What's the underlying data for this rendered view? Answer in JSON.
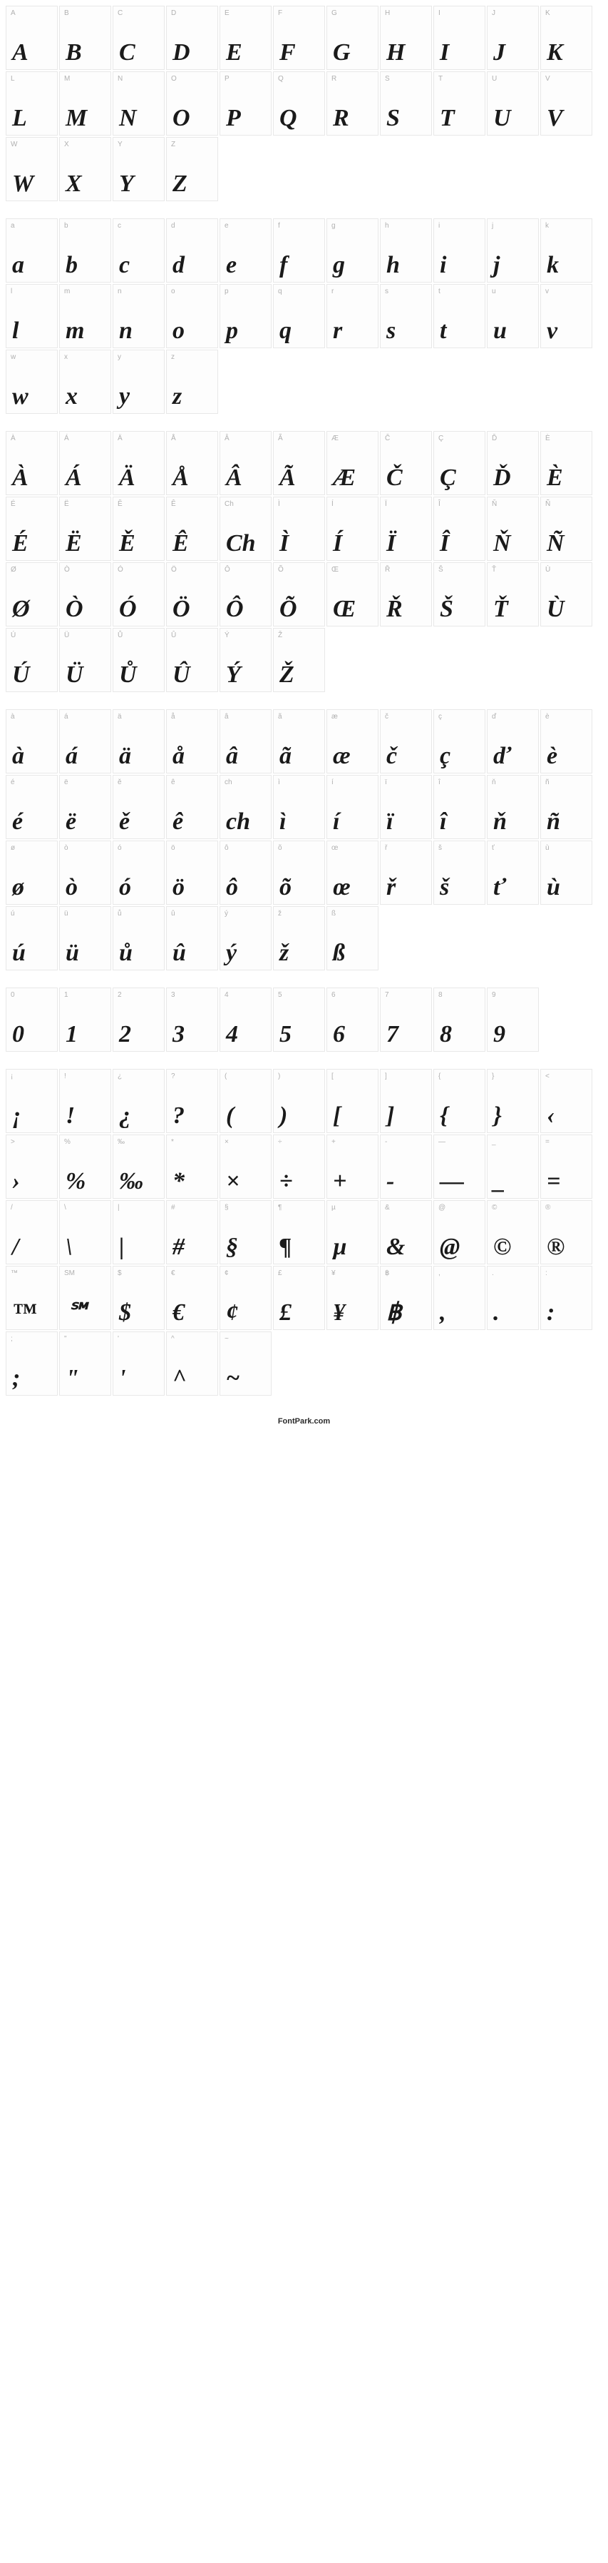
{
  "footer": "FontPark.com",
  "cell_style": {
    "width": 73,
    "height": 90,
    "border_color": "#e8e8e8",
    "background": "#fdfdfd",
    "label_color": "#b0b0b0",
    "label_fontsize": 10,
    "glyph_color": "#1a1a1a",
    "glyph_fontsize": 34,
    "glyph_style": "italic",
    "glyph_weight": 700
  },
  "groups": [
    {
      "name": "uppercase",
      "cells": [
        {
          "label": "A",
          "glyph": "A"
        },
        {
          "label": "B",
          "glyph": "B"
        },
        {
          "label": "C",
          "glyph": "C"
        },
        {
          "label": "D",
          "glyph": "D"
        },
        {
          "label": "E",
          "glyph": "E"
        },
        {
          "label": "F",
          "glyph": "F"
        },
        {
          "label": "G",
          "glyph": "G"
        },
        {
          "label": "H",
          "glyph": "H"
        },
        {
          "label": "I",
          "glyph": "I"
        },
        {
          "label": "J",
          "glyph": "J"
        },
        {
          "label": "K",
          "glyph": "K"
        },
        {
          "label": "L",
          "glyph": "L"
        },
        {
          "label": "M",
          "glyph": "M"
        },
        {
          "label": "N",
          "glyph": "N"
        },
        {
          "label": "O",
          "glyph": "O"
        },
        {
          "label": "P",
          "glyph": "P"
        },
        {
          "label": "Q",
          "glyph": "Q"
        },
        {
          "label": "R",
          "glyph": "R"
        },
        {
          "label": "S",
          "glyph": "S"
        },
        {
          "label": "T",
          "glyph": "T"
        },
        {
          "label": "U",
          "glyph": "U"
        },
        {
          "label": "V",
          "glyph": "V"
        },
        {
          "label": "W",
          "glyph": "W"
        },
        {
          "label": "X",
          "glyph": "X"
        },
        {
          "label": "Y",
          "glyph": "Y"
        },
        {
          "label": "Z",
          "glyph": "Z"
        }
      ]
    },
    {
      "name": "lowercase",
      "cells": [
        {
          "label": "a",
          "glyph": "a"
        },
        {
          "label": "b",
          "glyph": "b"
        },
        {
          "label": "c",
          "glyph": "c"
        },
        {
          "label": "d",
          "glyph": "d"
        },
        {
          "label": "e",
          "glyph": "e"
        },
        {
          "label": "f",
          "glyph": "f"
        },
        {
          "label": "g",
          "glyph": "g"
        },
        {
          "label": "h",
          "glyph": "h"
        },
        {
          "label": "i",
          "glyph": "i"
        },
        {
          "label": "j",
          "glyph": "j"
        },
        {
          "label": "k",
          "glyph": "k"
        },
        {
          "label": "l",
          "glyph": "l"
        },
        {
          "label": "m",
          "glyph": "m"
        },
        {
          "label": "n",
          "glyph": "n"
        },
        {
          "label": "o",
          "glyph": "o"
        },
        {
          "label": "p",
          "glyph": "p"
        },
        {
          "label": "q",
          "glyph": "q"
        },
        {
          "label": "r",
          "glyph": "r"
        },
        {
          "label": "s",
          "glyph": "s"
        },
        {
          "label": "t",
          "glyph": "t"
        },
        {
          "label": "u",
          "glyph": "u"
        },
        {
          "label": "v",
          "glyph": "v"
        },
        {
          "label": "w",
          "glyph": "w"
        },
        {
          "label": "x",
          "glyph": "x"
        },
        {
          "label": "y",
          "glyph": "y"
        },
        {
          "label": "z",
          "glyph": "z"
        }
      ]
    },
    {
      "name": "accented-upper",
      "cells": [
        {
          "label": "À",
          "glyph": "À"
        },
        {
          "label": "Á",
          "glyph": "Á"
        },
        {
          "label": "Ä",
          "glyph": "Ä"
        },
        {
          "label": "Å",
          "glyph": "Å"
        },
        {
          "label": "Â",
          "glyph": "Â"
        },
        {
          "label": "Ã",
          "glyph": "Ã"
        },
        {
          "label": "Æ",
          "glyph": "Æ"
        },
        {
          "label": "Č",
          "glyph": "Č"
        },
        {
          "label": "Ç",
          "glyph": "Ç"
        },
        {
          "label": "Ď",
          "glyph": "Ď"
        },
        {
          "label": "È",
          "glyph": "È"
        },
        {
          "label": "É",
          "glyph": "É"
        },
        {
          "label": "Ë",
          "glyph": "Ë"
        },
        {
          "label": "Ě",
          "glyph": "Ě"
        },
        {
          "label": "Ê",
          "glyph": "Ê"
        },
        {
          "label": "Ch",
          "glyph": "Ch"
        },
        {
          "label": "Ì",
          "glyph": "Ì"
        },
        {
          "label": "Í",
          "glyph": "Í"
        },
        {
          "label": "Ï",
          "glyph": "Ï"
        },
        {
          "label": "Î",
          "glyph": "Î"
        },
        {
          "label": "Ň",
          "glyph": "Ň"
        },
        {
          "label": "Ñ",
          "glyph": "Ñ"
        },
        {
          "label": "Ø",
          "glyph": "Ø"
        },
        {
          "label": "Ò",
          "glyph": "Ò"
        },
        {
          "label": "Ó",
          "glyph": "Ó"
        },
        {
          "label": "Ö",
          "glyph": "Ö"
        },
        {
          "label": "Ô",
          "glyph": "Ô"
        },
        {
          "label": "Õ",
          "glyph": "Õ"
        },
        {
          "label": "Œ",
          "glyph": "Œ"
        },
        {
          "label": "Ř",
          "glyph": "Ř"
        },
        {
          "label": "Š",
          "glyph": "Š"
        },
        {
          "label": "Ť",
          "glyph": "Ť"
        },
        {
          "label": "Ù",
          "glyph": "Ù"
        },
        {
          "label": "Ú",
          "glyph": "Ú"
        },
        {
          "label": "Ü",
          "glyph": "Ü"
        },
        {
          "label": "Ů",
          "glyph": "Ů"
        },
        {
          "label": "Û",
          "glyph": "Û"
        },
        {
          "label": "Ý",
          "glyph": "Ý"
        },
        {
          "label": "Ž",
          "glyph": "Ž"
        }
      ]
    },
    {
      "name": "accented-lower",
      "cells": [
        {
          "label": "à",
          "glyph": "à"
        },
        {
          "label": "á",
          "glyph": "á"
        },
        {
          "label": "ä",
          "glyph": "ä"
        },
        {
          "label": "å",
          "glyph": "å"
        },
        {
          "label": "â",
          "glyph": "â"
        },
        {
          "label": "ã",
          "glyph": "ã"
        },
        {
          "label": "æ",
          "glyph": "æ"
        },
        {
          "label": "č",
          "glyph": "č"
        },
        {
          "label": "ç",
          "glyph": "ç"
        },
        {
          "label": "ď",
          "glyph": "ď"
        },
        {
          "label": "è",
          "glyph": "è"
        },
        {
          "label": "é",
          "glyph": "é"
        },
        {
          "label": "ë",
          "glyph": "ë"
        },
        {
          "label": "ě",
          "glyph": "ě"
        },
        {
          "label": "ê",
          "glyph": "ê"
        },
        {
          "label": "ch",
          "glyph": "ch"
        },
        {
          "label": "ì",
          "glyph": "ì"
        },
        {
          "label": "í",
          "glyph": "í"
        },
        {
          "label": "ï",
          "glyph": "ï"
        },
        {
          "label": "î",
          "glyph": "î"
        },
        {
          "label": "ň",
          "glyph": "ň"
        },
        {
          "label": "ñ",
          "glyph": "ñ"
        },
        {
          "label": "ø",
          "glyph": "ø"
        },
        {
          "label": "ò",
          "glyph": "ò"
        },
        {
          "label": "ó",
          "glyph": "ó"
        },
        {
          "label": "ö",
          "glyph": "ö"
        },
        {
          "label": "ô",
          "glyph": "ô"
        },
        {
          "label": "õ",
          "glyph": "õ"
        },
        {
          "label": "œ",
          "glyph": "œ"
        },
        {
          "label": "ř",
          "glyph": "ř"
        },
        {
          "label": "š",
          "glyph": "š"
        },
        {
          "label": "ť",
          "glyph": "ť"
        },
        {
          "label": "ù",
          "glyph": "ù"
        },
        {
          "label": "ú",
          "glyph": "ú"
        },
        {
          "label": "ü",
          "glyph": "ü"
        },
        {
          "label": "ů",
          "glyph": "ů"
        },
        {
          "label": "û",
          "glyph": "û"
        },
        {
          "label": "ý",
          "glyph": "ý"
        },
        {
          "label": "ž",
          "glyph": "ž"
        },
        {
          "label": "ß",
          "glyph": "ß"
        }
      ]
    },
    {
      "name": "digits",
      "cells": [
        {
          "label": "0",
          "glyph": "0"
        },
        {
          "label": "1",
          "glyph": "1"
        },
        {
          "label": "2",
          "glyph": "2"
        },
        {
          "label": "3",
          "glyph": "3"
        },
        {
          "label": "4",
          "glyph": "4"
        },
        {
          "label": "5",
          "glyph": "5"
        },
        {
          "label": "6",
          "glyph": "6"
        },
        {
          "label": "7",
          "glyph": "7"
        },
        {
          "label": "8",
          "glyph": "8"
        },
        {
          "label": "9",
          "glyph": "9"
        }
      ]
    },
    {
      "name": "symbols",
      "cells": [
        {
          "label": "¡",
          "glyph": "¡"
        },
        {
          "label": "!",
          "glyph": "!"
        },
        {
          "label": "¿",
          "glyph": "¿"
        },
        {
          "label": "?",
          "glyph": "?"
        },
        {
          "label": "(",
          "glyph": "("
        },
        {
          "label": ")",
          "glyph": ")"
        },
        {
          "label": "[",
          "glyph": "["
        },
        {
          "label": "]",
          "glyph": "]"
        },
        {
          "label": "{",
          "glyph": "{"
        },
        {
          "label": "}",
          "glyph": "}"
        },
        {
          "label": "<",
          "glyph": "‹"
        },
        {
          "label": ">",
          "glyph": "›"
        },
        {
          "label": "%",
          "glyph": "%"
        },
        {
          "label": "‰",
          "glyph": "‰"
        },
        {
          "label": "*",
          "glyph": "*"
        },
        {
          "label": "×",
          "glyph": "×"
        },
        {
          "label": "÷",
          "glyph": "÷"
        },
        {
          "label": "+",
          "glyph": "+"
        },
        {
          "label": "-",
          "glyph": "-"
        },
        {
          "label": "—",
          "glyph": "—"
        },
        {
          "label": "_",
          "glyph": "_"
        },
        {
          "label": "=",
          "glyph": "="
        },
        {
          "label": "/",
          "glyph": "/"
        },
        {
          "label": "\\",
          "glyph": "\\"
        },
        {
          "label": "|",
          "glyph": "|"
        },
        {
          "label": "#",
          "glyph": "#"
        },
        {
          "label": "§",
          "glyph": "§"
        },
        {
          "label": "¶",
          "glyph": "¶"
        },
        {
          "label": "µ",
          "glyph": "µ"
        },
        {
          "label": "&",
          "glyph": "&"
        },
        {
          "label": "@",
          "glyph": "@"
        },
        {
          "label": "©",
          "glyph": "©"
        },
        {
          "label": "®",
          "glyph": "®"
        },
        {
          "label": "™",
          "glyph": "™"
        },
        {
          "label": "SM",
          "glyph": "℠"
        },
        {
          "label": "$",
          "glyph": "$"
        },
        {
          "label": "€",
          "glyph": "€"
        },
        {
          "label": "¢",
          "glyph": "¢"
        },
        {
          "label": "£",
          "glyph": "£"
        },
        {
          "label": "¥",
          "glyph": "¥"
        },
        {
          "label": "฿",
          "glyph": "฿"
        },
        {
          "label": ",",
          "glyph": ","
        },
        {
          "label": ".",
          "glyph": "."
        },
        {
          "label": ":",
          "glyph": ":"
        },
        {
          "label": ";",
          "glyph": ";"
        },
        {
          "label": "\"",
          "glyph": "\""
        },
        {
          "label": "'",
          "glyph": "'"
        },
        {
          "label": "^",
          "glyph": "^"
        },
        {
          "label": "~",
          "glyph": "~"
        }
      ]
    }
  ]
}
